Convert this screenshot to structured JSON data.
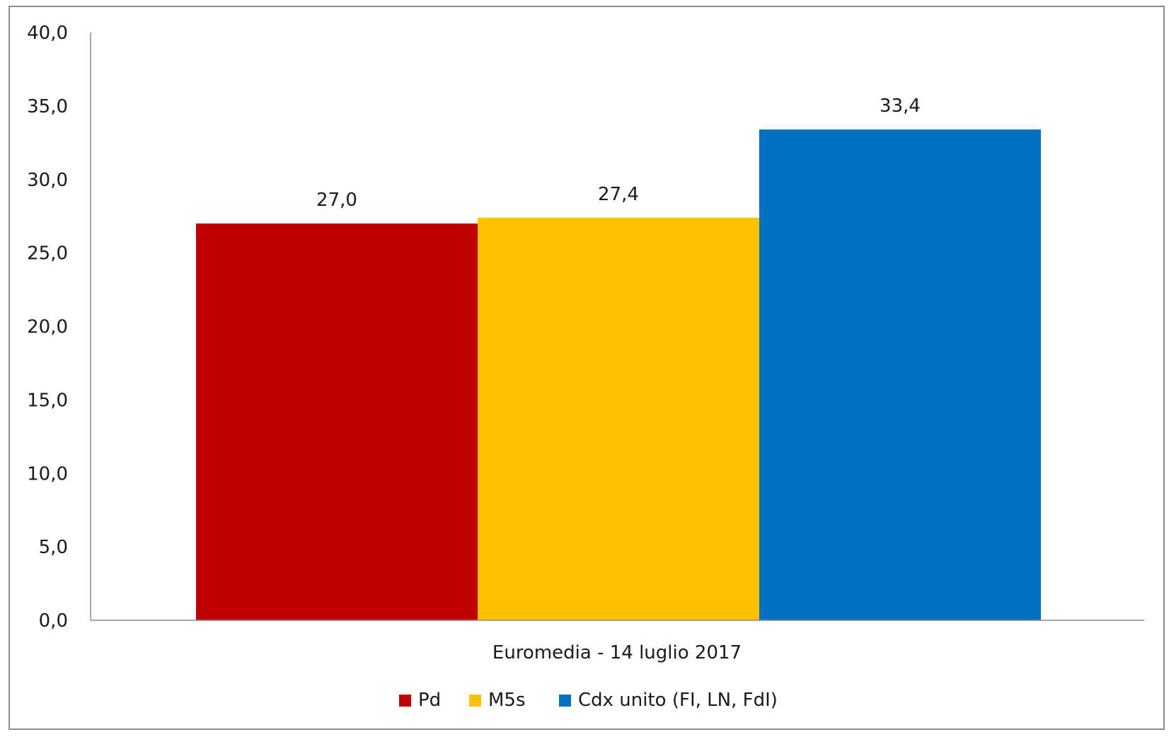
{
  "chart_data": {
    "type": "bar",
    "categories": [
      "Euromedia - 14 luglio 2017"
    ],
    "series": [
      {
        "name": "Pd",
        "values": [
          27.0
        ],
        "value_labels": [
          "27,0"
        ],
        "color": "#C00000"
      },
      {
        "name": "M5s",
        "values": [
          27.4
        ],
        "value_labels": [
          "27,4"
        ],
        "color": "#FFC000"
      },
      {
        "name": "Cdx unito (FI, LN, FdI)",
        "values": [
          33.4
        ],
        "value_labels": [
          "33,4"
        ],
        "color": "#0070C0"
      }
    ],
    "ylim": [
      0,
      40
    ],
    "y_ticks": [
      0,
      5,
      10,
      15,
      20,
      25,
      30,
      35,
      40
    ],
    "y_tick_labels": [
      "0,0",
      "5,0",
      "10,0",
      "15,0",
      "20,0",
      "25,0",
      "30,0",
      "35,0",
      "40,0"
    ],
    "grid": false,
    "legend_position": "bottom"
  }
}
